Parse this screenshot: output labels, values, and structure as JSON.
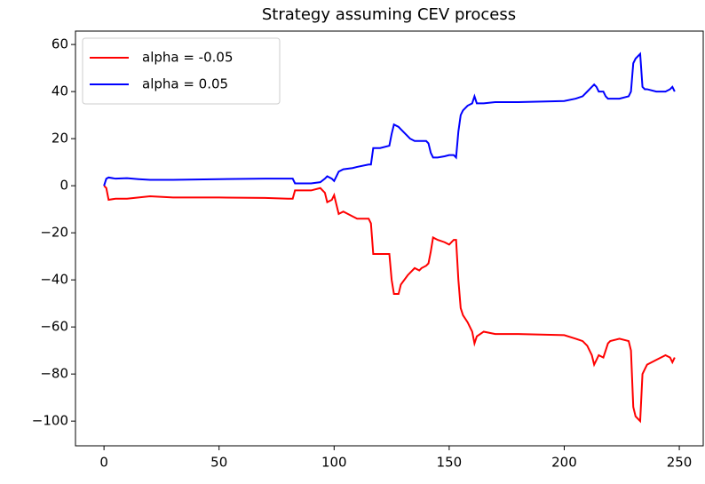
{
  "chart_data": {
    "type": "line",
    "title": "Strategy assuming CEV process",
    "x": [
      0,
      1,
      2,
      5,
      10,
      15,
      20,
      30,
      50,
      70,
      80,
      82,
      83,
      90,
      94,
      96,
      97,
      99,
      100,
      101,
      102,
      104,
      108,
      110,
      115,
      116,
      117,
      120,
      124,
      125,
      126,
      128,
      129,
      132,
      133,
      135,
      137,
      138,
      140,
      141,
      142,
      143,
      145,
      148,
      150,
      152,
      153,
      154,
      155,
      156,
      158,
      160,
      161,
      162,
      165,
      170,
      180,
      200,
      205,
      208,
      210,
      212,
      213,
      214,
      215,
      217,
      218,
      219,
      220,
      224,
      228,
      229,
      230,
      231,
      233,
      234,
      235,
      236,
      240,
      244,
      246,
      247,
      248
    ],
    "series": [
      {
        "name": "alpha = -0.05",
        "color": "#ff0000",
        "values": [
          0,
          -1,
          -6,
          -5.5,
          -5.5,
          -5,
          -4.5,
          -5,
          -5,
          -5.2,
          -5.5,
          -5.5,
          -2,
          -2,
          -1,
          -3,
          -7,
          -6,
          -4,
          -8,
          -12,
          -11,
          -13,
          -14,
          -14,
          -16,
          -29,
          -29,
          -29,
          -40,
          -46,
          -46,
          -42,
          -38,
          -37,
          -35,
          -36,
          -35,
          -34,
          -33,
          -28,
          -22,
          -23,
          -24,
          -25,
          -23,
          -23,
          -40,
          -52,
          -55,
          -58,
          -62,
          -67,
          -64,
          -62,
          -63,
          -63,
          -63.5,
          -65,
          -66,
          -68,
          -72,
          -76,
          -74,
          -72,
          -73,
          -70,
          -67,
          -66,
          -65,
          -66,
          -70,
          -94,
          -98,
          -100,
          -80,
          -78,
          -76,
          -74,
          -72,
          -73,
          -75,
          -73
        ]
      },
      {
        "name": "alpha = 0.05",
        "color": "#0000ff",
        "values": [
          0,
          3,
          3.5,
          3,
          3.2,
          2.8,
          2.5,
          2.5,
          2.8,
          3,
          3,
          3,
          1,
          1,
          1.5,
          3,
          4,
          3,
          2,
          4,
          6,
          7,
          7.5,
          8,
          9,
          9,
          16,
          16,
          17,
          22,
          26,
          25,
          24,
          21,
          20,
          19,
          19,
          19,
          19,
          18,
          14,
          12,
          12,
          12.5,
          13,
          13,
          12,
          23,
          30,
          32,
          34,
          35,
          38,
          35,
          35,
          35.5,
          35.5,
          36,
          37,
          38,
          40,
          42,
          43,
          42,
          40,
          40,
          38,
          37,
          37,
          37,
          38,
          40,
          52,
          54,
          56,
          42,
          41,
          41,
          40,
          40,
          41,
          42,
          40
        ]
      }
    ],
    "xlim": [
      -12.4,
      260.4
    ],
    "ylim": [
      -110.5,
      65.7
    ],
    "xticks": [
      0,
      50,
      100,
      150,
      200,
      250
    ],
    "yticks": [
      {
        "value": -100,
        "label": "−100"
      },
      {
        "value": -80,
        "label": "−80"
      },
      {
        "value": -60,
        "label": "−60"
      },
      {
        "value": -40,
        "label": "−40"
      },
      {
        "value": -20,
        "label": "−20"
      },
      0,
      20,
      40,
      60
    ],
    "legend": "upper left",
    "grid": false
  }
}
